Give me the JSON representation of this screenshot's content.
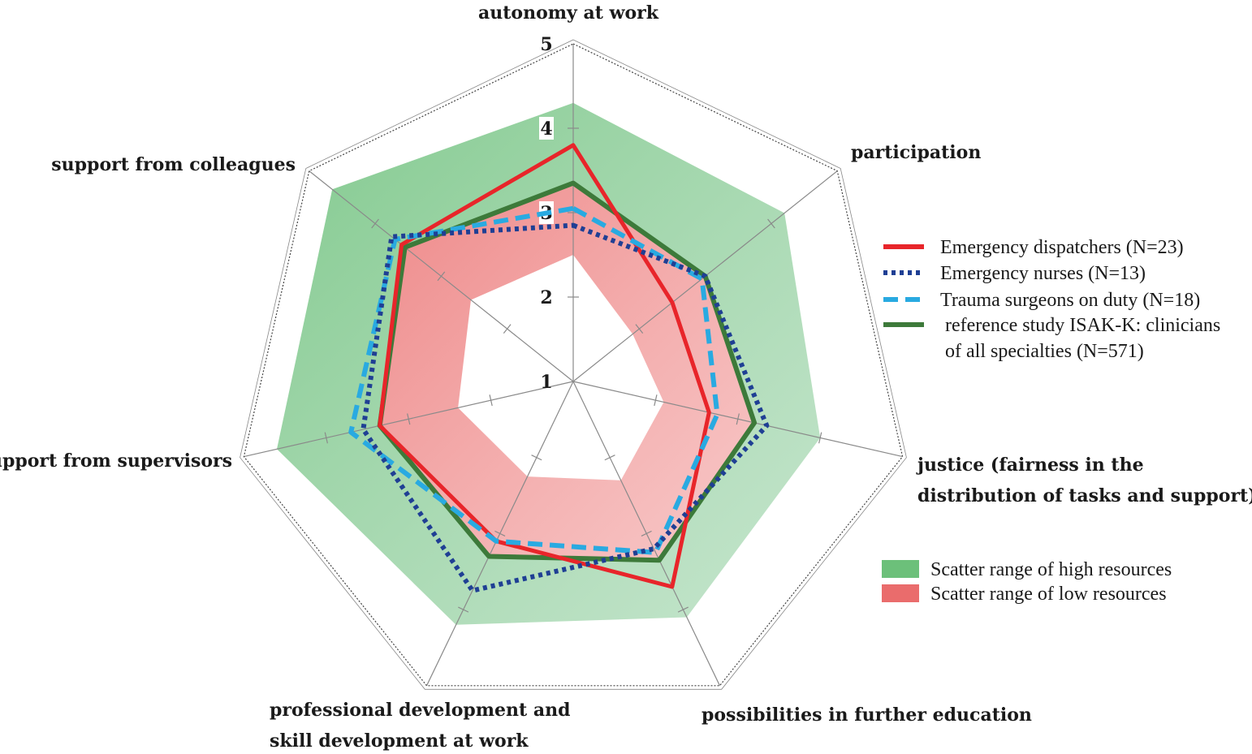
{
  "chart_data": {
    "type": "radar",
    "axes": [
      [
        "autonomy at work"
      ],
      [
        "participation"
      ],
      [
        "justice (fairness in the",
        "distribution of tasks and support)"
      ],
      [
        "possibilities in further education"
      ],
      [
        "professional development and",
        "skill development at work"
      ],
      [
        "support from supervisors"
      ],
      [
        "support from colleagues"
      ]
    ],
    "rlim": [
      1,
      5
    ],
    "ticks": [
      "1",
      "2",
      "3",
      "4",
      "5"
    ],
    "series": [
      {
        "name": "Emergency dispatchers (N=23)",
        "style": "solid",
        "color": "#e8252a",
        "values": [
          3.8,
          2.5,
          2.65,
          3.7,
          3.1,
          3.35,
          3.6
        ]
      },
      {
        "name": "Emergency nurses (N=13)",
        "style": "dotted",
        "color": "#1f3f94",
        "values": [
          2.85,
          3.0,
          3.35,
          3.2,
          3.75,
          3.55,
          3.75
        ]
      },
      {
        "name": "Trauma surgeons on duty (N=18)",
        "style": "dashed",
        "color": "#29aae1",
        "values": [
          3.05,
          2.95,
          2.75,
          3.25,
          3.1,
          3.7,
          3.7
        ]
      },
      {
        "name": "reference study ISAK-K: clinicians of all specialties (N=571)",
        "style": "solid",
        "color": "#3d7a3a",
        "values": [
          3.35,
          3.0,
          3.2,
          3.35,
          3.3,
          3.35,
          3.55
        ]
      }
    ],
    "ranges": [
      {
        "name": "Scatter range of high resources",
        "color": "#6cc07a",
        "lower": [
          3.35,
          3.0,
          3.2,
          3.35,
          3.3,
          3.35,
          3.55
        ],
        "upper": [
          4.3,
          4.2,
          4.0,
          4.1,
          4.2,
          4.6,
          4.65
        ]
      },
      {
        "name": "Scatter range of low resources",
        "color": "#ea6c6c",
        "lower": [
          2.5,
          1.9,
          2.1,
          2.3,
          2.25,
          2.4,
          2.55
        ],
        "upper": [
          3.35,
          3.0,
          3.2,
          3.35,
          3.3,
          3.35,
          3.55
        ]
      }
    ],
    "legend": {
      "lines": [
        [
          "Emergency dispatchers (N=23)"
        ],
        [
          "Emergency nurses (N=13)"
        ],
        [
          "Trauma surgeons on duty (N=18)"
        ],
        [
          "reference study ISAK-K: clinicians",
          "of all specialties (N=571)"
        ]
      ],
      "ranges": [
        "Scatter range of high resources",
        "Scatter range of low resources"
      ],
      "placement": "right"
    }
  }
}
